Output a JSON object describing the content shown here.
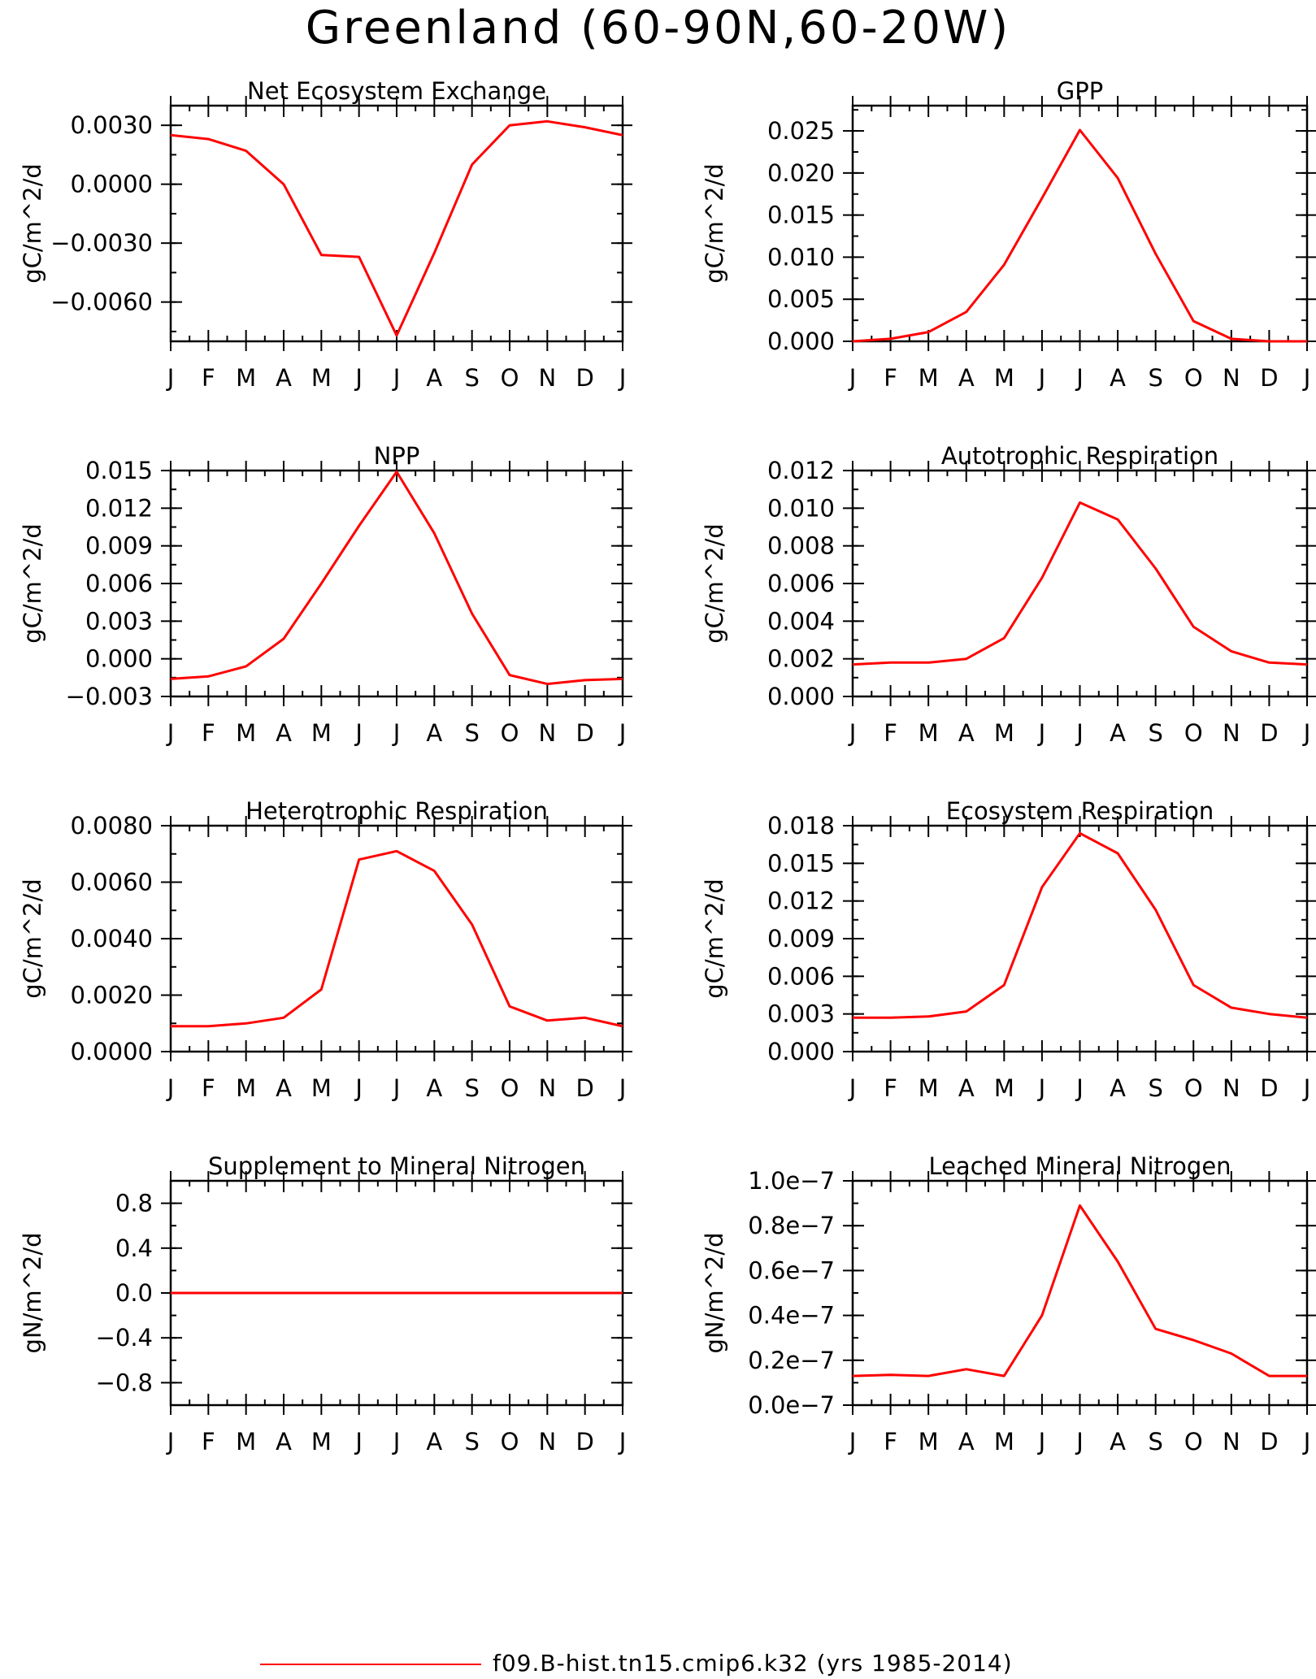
{
  "figure": {
    "title": "Greenland (60-90N,60-20W)",
    "legend_label": "f09.B-hist.tn15.cmip6.k32 (yrs 1985-2014)",
    "line_color": "#ff0000"
  },
  "chart_data": [
    {
      "type": "line",
      "title": "Net Ecosystem Exchange",
      "ylabel": "gC/m^2/d",
      "categories": [
        "J",
        "F",
        "M",
        "A",
        "M",
        "J",
        "J",
        "A",
        "S",
        "O",
        "N",
        "D",
        "J"
      ],
      "ylim": [
        -0.008,
        0.004
      ],
      "yticks": [
        0.003,
        0.0,
        -0.003,
        -0.006
      ],
      "ytick_labels": [
        "0.0030",
        "0.0000",
        "-0.0030",
        "-0.0060"
      ],
      "series": [
        {
          "values": [
            0.0025,
            0.0023,
            0.0017,
            0.0,
            -0.0036,
            -0.0037,
            -0.0077,
            -0.0035,
            0.001,
            0.003,
            0.0032,
            0.0029,
            0.0025
          ]
        }
      ]
    },
    {
      "type": "line",
      "title": "GPP",
      "ylabel": "gC/m^2/d",
      "categories": [
        "J",
        "F",
        "M",
        "A",
        "M",
        "J",
        "J",
        "A",
        "S",
        "O",
        "N",
        "D",
        "J"
      ],
      "ylim": [
        0.0,
        0.028
      ],
      "yticks": [
        0.0,
        0.005,
        0.01,
        0.015,
        0.02,
        0.025
      ],
      "ytick_labels": [
        "0.000",
        "0.005",
        "0.010",
        "0.015",
        "0.020",
        "0.025"
      ],
      "series": [
        {
          "values": [
            0.0,
            0.0003,
            0.0011,
            0.0035,
            0.0091,
            0.017,
            0.0251,
            0.0194,
            0.0104,
            0.0024,
            0.0003,
            0.0,
            0.0
          ]
        }
      ]
    },
    {
      "type": "line",
      "title": "NPP",
      "ylabel": "gC/m^2/d",
      "categories": [
        "J",
        "F",
        "M",
        "A",
        "M",
        "J",
        "J",
        "A",
        "S",
        "O",
        "N",
        "D",
        "J"
      ],
      "ylim": [
        -0.003,
        0.015
      ],
      "yticks": [
        -0.003,
        0.0,
        0.003,
        0.006,
        0.009,
        0.012,
        0.015
      ],
      "ytick_labels": [
        "-0.003",
        "0.000",
        "0.003",
        "0.006",
        "0.009",
        "0.012",
        "0.015"
      ],
      "series": [
        {
          "values": [
            -0.0016,
            -0.0014,
            -0.0006,
            0.0016,
            0.006,
            0.0106,
            0.0149,
            0.01,
            0.0036,
            -0.0013,
            -0.002,
            -0.0017,
            -0.0016
          ]
        }
      ]
    },
    {
      "type": "line",
      "title": "Autotrophic Respiration",
      "ylabel": "gC/m^2/d",
      "categories": [
        "J",
        "F",
        "M",
        "A",
        "M",
        "J",
        "J",
        "A",
        "S",
        "O",
        "N",
        "D",
        "J"
      ],
      "ylim": [
        0.0,
        0.012
      ],
      "yticks": [
        0.0,
        0.002,
        0.004,
        0.006,
        0.008,
        0.01,
        0.012
      ],
      "ytick_labels": [
        "0.000",
        "0.002",
        "0.004",
        "0.006",
        "0.008",
        "0.010",
        "0.012"
      ],
      "series": [
        {
          "values": [
            0.0017,
            0.0018,
            0.0018,
            0.002,
            0.0031,
            0.0063,
            0.0103,
            0.0094,
            0.0068,
            0.0037,
            0.0024,
            0.0018,
            0.0017
          ]
        }
      ]
    },
    {
      "type": "line",
      "title": "Heterotrophic Respiration",
      "ylabel": "gC/m^2/d",
      "categories": [
        "J",
        "F",
        "M",
        "A",
        "M",
        "J",
        "J",
        "A",
        "S",
        "O",
        "N",
        "D",
        "J"
      ],
      "ylim": [
        0.0,
        0.008
      ],
      "yticks": [
        0.0,
        0.002,
        0.004,
        0.006,
        0.008
      ],
      "ytick_labels": [
        "0.0000",
        "0.0020",
        "0.0040",
        "0.0060",
        "0.0080"
      ],
      "series": [
        {
          "values": [
            0.0009,
            0.0009,
            0.001,
            0.0012,
            0.0022,
            0.0068,
            0.0071,
            0.0064,
            0.0045,
            0.0016,
            0.0011,
            0.0012,
            0.0009
          ]
        }
      ]
    },
    {
      "type": "line",
      "title": "Ecosystem Respiration",
      "ylabel": "gC/m^2/d",
      "categories": [
        "J",
        "F",
        "M",
        "A",
        "M",
        "J",
        "J",
        "A",
        "S",
        "O",
        "N",
        "D",
        "J"
      ],
      "ylim": [
        0.0,
        0.018
      ],
      "yticks": [
        0.0,
        0.003,
        0.006,
        0.009,
        0.012,
        0.015,
        0.018
      ],
      "ytick_labels": [
        "0.000",
        "0.003",
        "0.006",
        "0.009",
        "0.012",
        "0.015",
        "0.018"
      ],
      "series": [
        {
          "values": [
            0.0027,
            0.0027,
            0.0028,
            0.0032,
            0.0053,
            0.0131,
            0.0174,
            0.0158,
            0.0113,
            0.0053,
            0.0035,
            0.003,
            0.0027
          ]
        }
      ]
    },
    {
      "type": "line",
      "title": "Supplement to Mineral Nitrogen",
      "ylabel": "gN/m^2/d",
      "categories": [
        "J",
        "F",
        "M",
        "A",
        "M",
        "J",
        "J",
        "A",
        "S",
        "O",
        "N",
        "D",
        "J"
      ],
      "ylim": [
        -1.0,
        1.0
      ],
      "yticks": [
        -0.8,
        -0.4,
        0.0,
        0.4,
        0.8
      ],
      "ytick_labels": [
        "-0.8",
        "-0.4",
        "0.0",
        "0.4",
        "0.8"
      ],
      "series": [
        {
          "values": [
            0,
            0,
            0,
            0,
            0,
            0,
            0,
            0,
            0,
            0,
            0,
            0,
            0
          ]
        }
      ]
    },
    {
      "type": "line",
      "title": "Leached Mineral Nitrogen",
      "ylabel": "gN/m^2/d",
      "categories": [
        "J",
        "F",
        "M",
        "A",
        "M",
        "J",
        "J",
        "A",
        "S",
        "O",
        "N",
        "D",
        "J"
      ],
      "ylim": [
        0.0,
        1e-07
      ],
      "yticks": [
        0.0,
        2e-08,
        4e-08,
        6e-08,
        8e-08,
        1e-07
      ],
      "ytick_labels": [
        "0.0e-7",
        "0.2e-7",
        "0.4e-7",
        "0.6e-7",
        "0.8e-7",
        "1.0e-7"
      ],
      "series": [
        {
          "values": [
            1.3e-08,
            1.35e-08,
            1.3e-08,
            1.6e-08,
            1.3e-08,
            4e-08,
            8.9e-08,
            6.4e-08,
            3.4e-08,
            2.9e-08,
            2.3e-08,
            1.3e-08,
            1.3e-08
          ]
        }
      ]
    }
  ]
}
